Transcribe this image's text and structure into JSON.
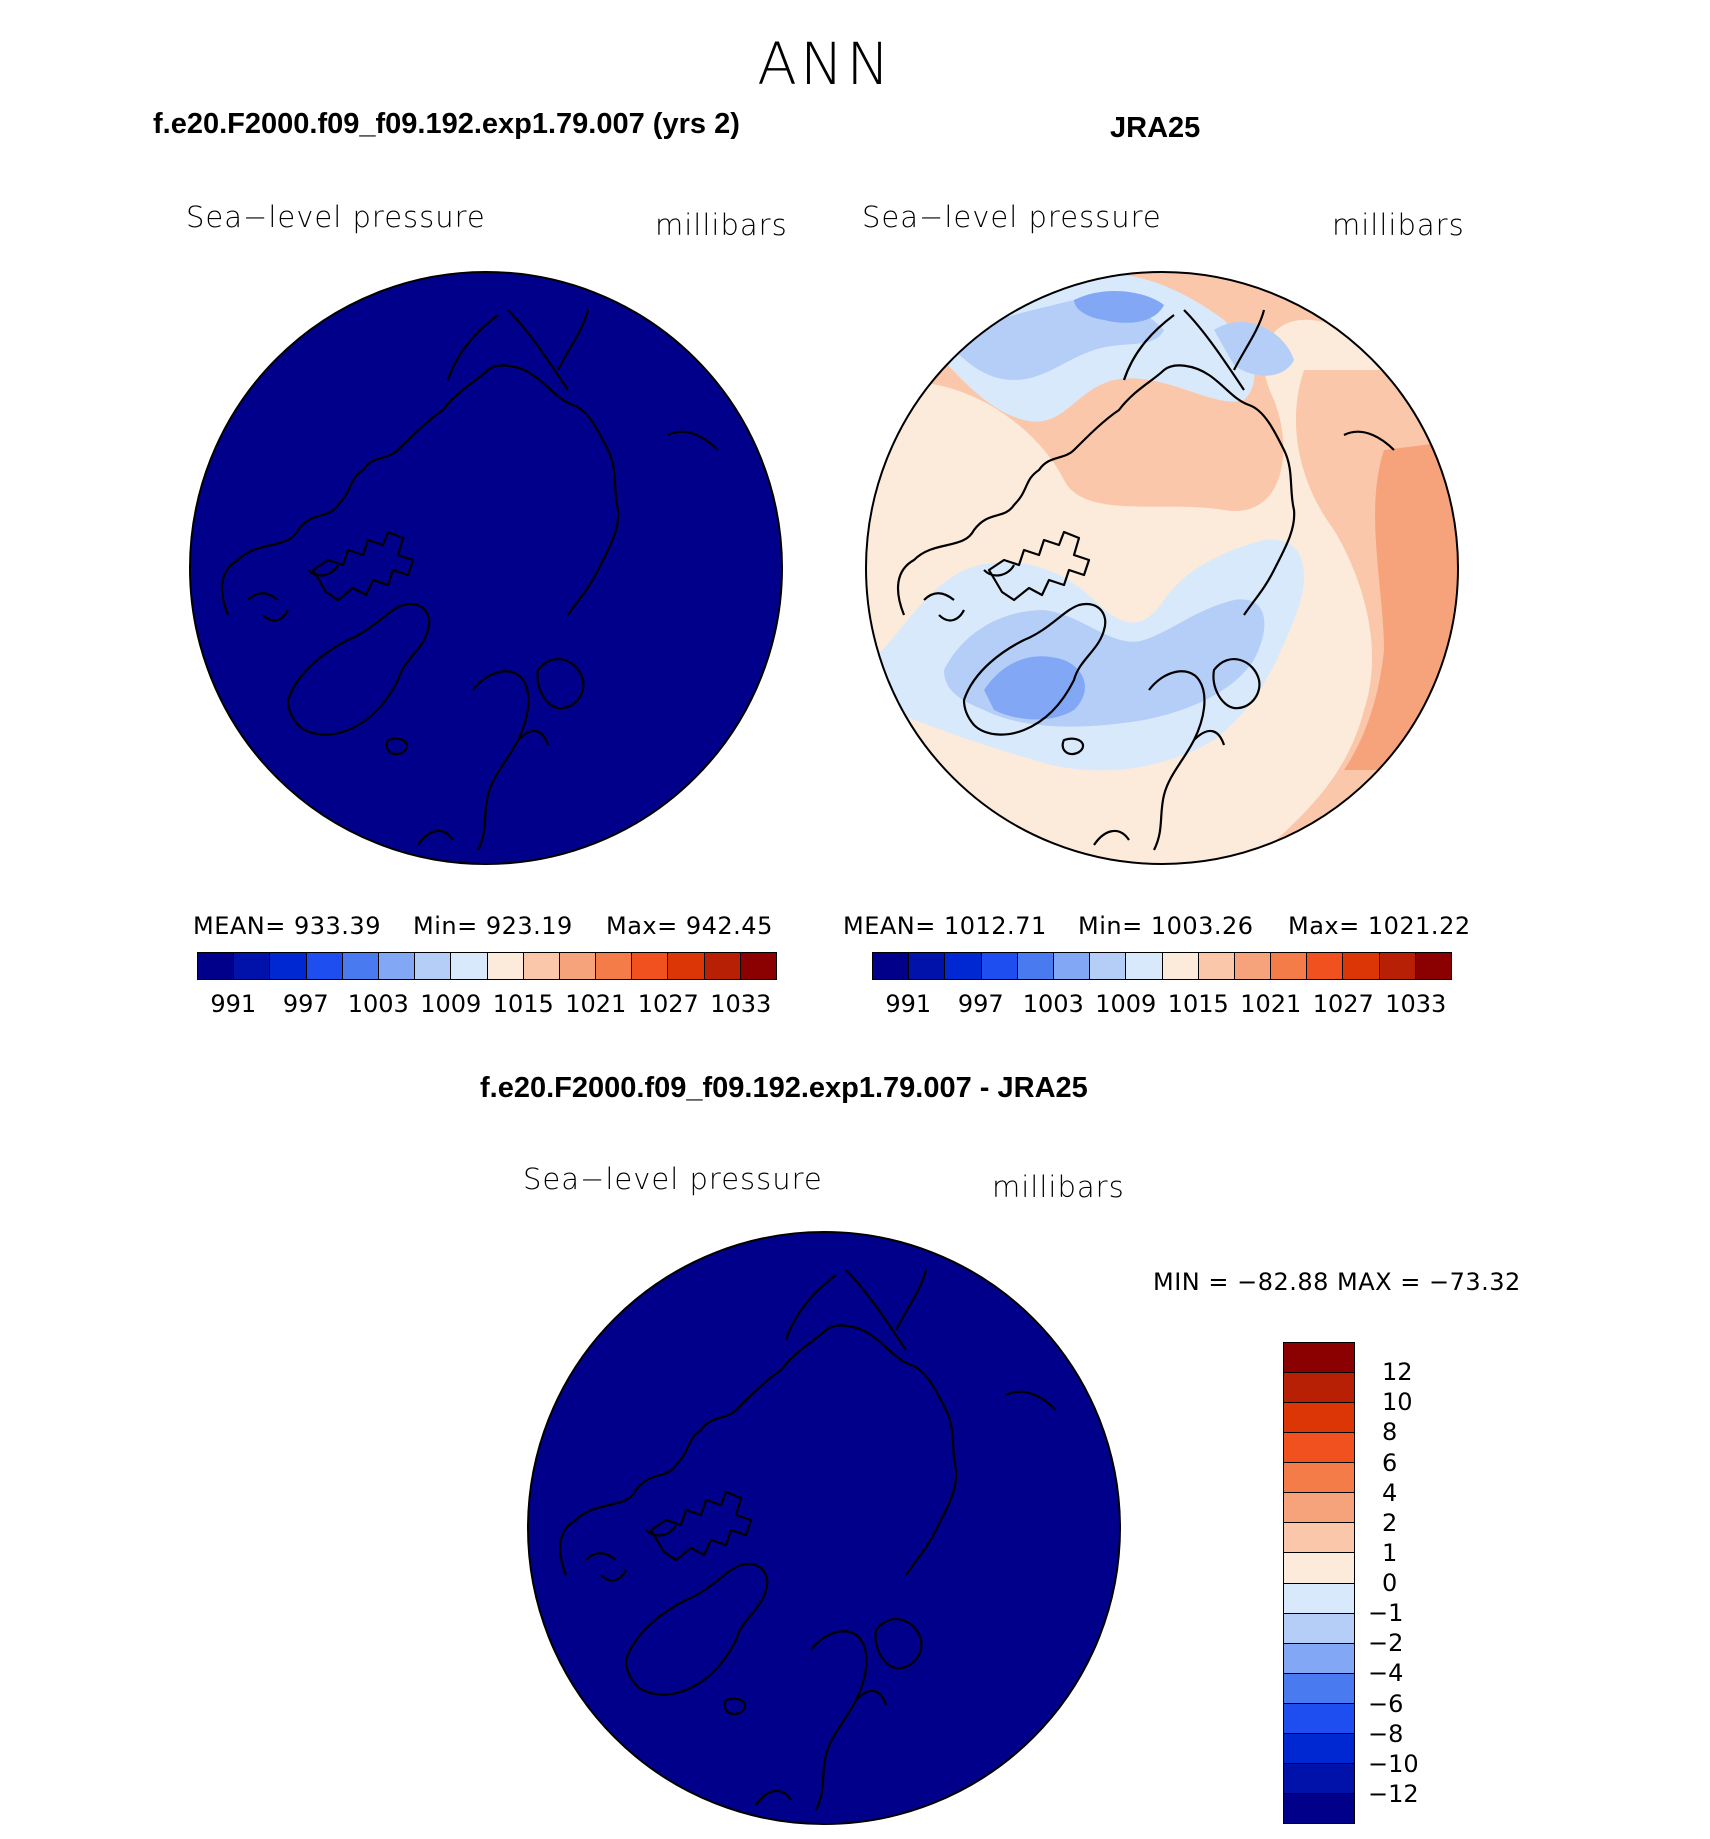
{
  "title": "ANN",
  "colors": [
    "#00008B",
    "#0012AA",
    "#0028D2",
    "#1E4EF0",
    "#4A7AF0",
    "#82A8F5",
    "#B5CEF8",
    "#D8E9FB",
    "#FCEBDB",
    "#FAC7AA",
    "#F6A27A",
    "#F47C48",
    "#F0511E",
    "#DC3506",
    "#B72005",
    "#8B0000"
  ],
  "contour_labels": [
    "991",
    "997",
    "1003",
    "1009",
    "1015",
    "1021",
    "1027",
    "1033"
  ],
  "diff_labels": [
    "12",
    "10",
    "8",
    "6",
    "4",
    "2",
    "1",
    "0",
    "−1",
    "−2",
    "−4",
    "−6",
    "−8",
    "−10",
    "−12"
  ],
  "panels": [
    {
      "title": "f.e20.F2000.f09_f09.192.exp1.79.007 (yrs 2)",
      "variable": "Sea−level pressure",
      "units": "millibars",
      "stats": {
        "mean": "MEAN= 933.39",
        "min": "Min= 923.19",
        "max": "Max= 942.45"
      }
    },
    {
      "title": "JRA25",
      "variable": "Sea−level pressure",
      "units": "millibars",
      "stats": {
        "mean": "MEAN= 1012.71",
        "min": "Min= 1003.26",
        "max": "Max= 1021.22"
      }
    },
    {
      "title": "f.e20.F2000.f09_f09.192.exp1.79.007 - JRA25",
      "variable": "Sea−level pressure",
      "units": "millibars",
      "stats": {
        "minmax": "MIN = −82.88 MAX = −73.32"
      }
    }
  ]
}
